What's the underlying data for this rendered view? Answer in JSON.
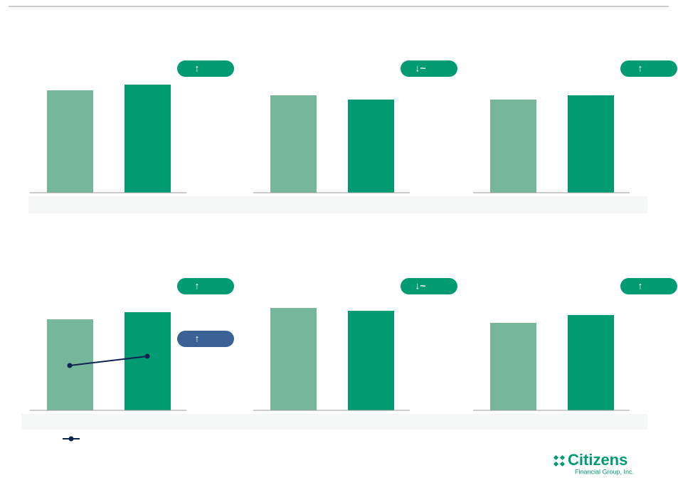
{
  "chart_data": [
    {
      "type": "bar",
      "categories": [
        null,
        null
      ],
      "values": [
        144,
        152
      ],
      "colors": [
        "#76b79b",
        "#009b73"
      ],
      "ylim": [
        0,
        200
      ],
      "badges": [
        "↑"
      ],
      "badge_colors": [
        "#009b73"
      ]
    },
    {
      "type": "bar",
      "categories": [
        null,
        null
      ],
      "values": [
        137,
        131
      ],
      "colors": [
        "#76b79b",
        "#009b73"
      ],
      "ylim": [
        0,
        200
      ],
      "badges": [
        "↓~"
      ],
      "badge_colors": [
        "#009b73"
      ]
    },
    {
      "type": "bar",
      "categories": [
        null,
        null
      ],
      "values": [
        131,
        137
      ],
      "colors": [
        "#76b79b",
        "#009b73"
      ],
      "ylim": [
        0,
        200
      ],
      "badges": [
        "↑"
      ],
      "badge_colors": [
        "#009b73"
      ]
    },
    {
      "type": "bar",
      "categories": [
        null,
        null
      ],
      "values": [
        128,
        138
      ],
      "colors": [
        "#76b79b",
        "#009b73"
      ],
      "ylim": [
        0,
        200
      ],
      "badges": [
        "↑",
        "↑"
      ],
      "badge_colors": [
        "#009b73",
        "#3b6196"
      ],
      "line": {
        "color": "#0d2350",
        "values": [
          63,
          76
        ]
      }
    },
    {
      "type": "bar",
      "categories": [
        null,
        null
      ],
      "values": [
        144,
        140
      ],
      "colors": [
        "#76b79b",
        "#009b73"
      ],
      "ylim": [
        0,
        200
      ],
      "badges": [
        "↓~"
      ],
      "badge_colors": [
        "#009b73"
      ]
    },
    {
      "type": "bar",
      "categories": [
        null,
        null
      ],
      "values": [
        123,
        134
      ],
      "colors": [
        "#76b79b",
        "#009b73"
      ],
      "ylim": [
        0,
        200
      ],
      "badges": [
        "↑"
      ],
      "badge_colors": [
        "#009b73"
      ]
    }
  ],
  "logo": {
    "name": "Citizens",
    "subtitle": "Financial Group, Inc."
  }
}
